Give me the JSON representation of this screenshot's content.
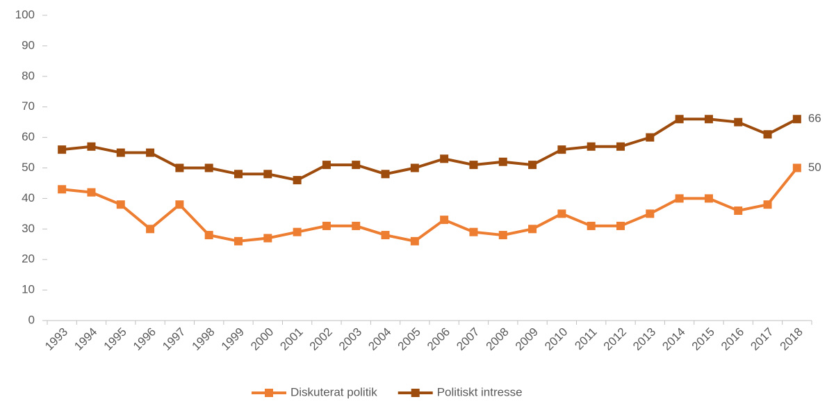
{
  "chart_data": {
    "type": "line",
    "categories": [
      "1993",
      "1994",
      "1995",
      "1996",
      "1997",
      "1998",
      "1999",
      "2000",
      "2001",
      "2002",
      "2003",
      "2004",
      "2005",
      "2006",
      "2007",
      "2008",
      "2009",
      "2010",
      "2011",
      "2012",
      "2013",
      "2014",
      "2015",
      "2016",
      "2017",
      "2018"
    ],
    "series": [
      {
        "name": "Diskuterat politik",
        "color": "#ed7d31",
        "values": [
          43,
          42,
          38,
          30,
          38,
          28,
          26,
          27,
          29,
          31,
          31,
          28,
          26,
          33,
          29,
          28,
          30,
          35,
          31,
          31,
          35,
          40,
          40,
          36,
          38,
          50
        ]
      },
      {
        "name": "Politiskt intresse",
        "color": "#9e4c0e",
        "values": [
          56,
          57,
          55,
          55,
          50,
          50,
          48,
          48,
          46,
          51,
          51,
          48,
          50,
          53,
          51,
          52,
          51,
          56,
          57,
          57,
          60,
          66,
          66,
          65,
          61,
          66
        ]
      }
    ],
    "ylim": [
      0,
      100
    ],
    "yticks": [
      0,
      10,
      20,
      30,
      40,
      50,
      60,
      70,
      80,
      90,
      100
    ],
    "legend": "bottom"
  }
}
